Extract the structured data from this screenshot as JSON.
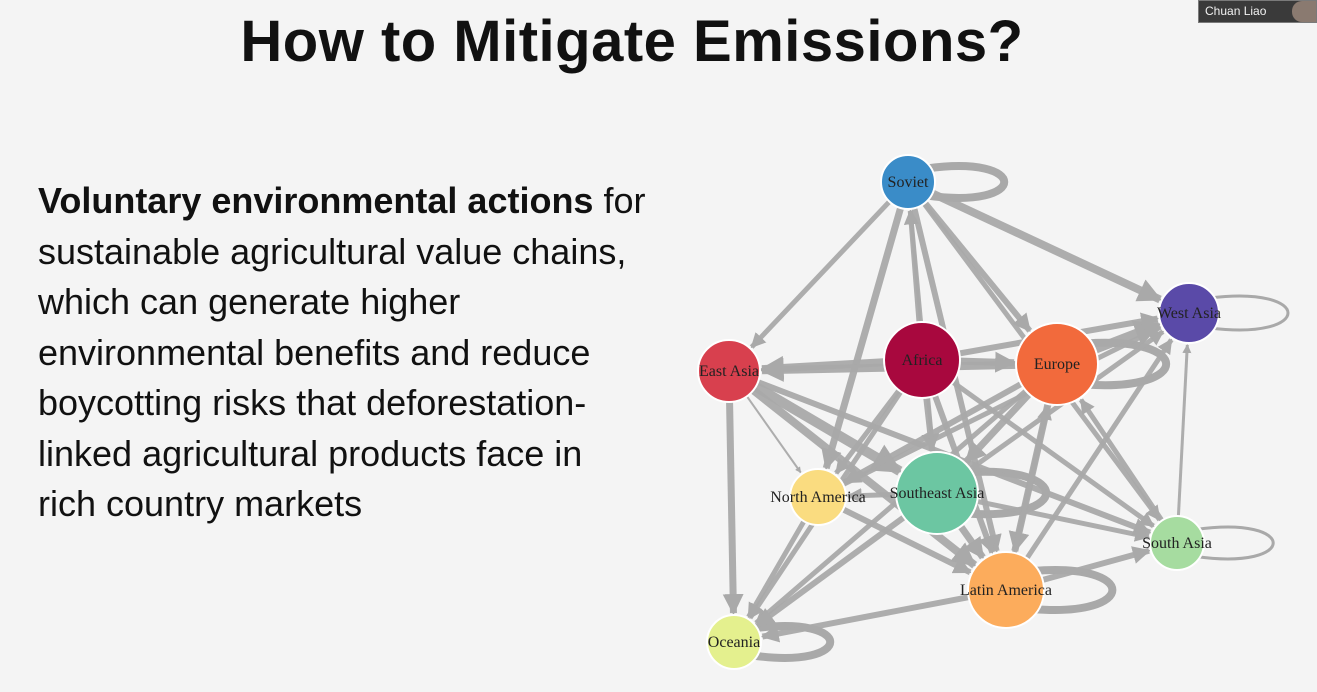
{
  "slide": {
    "title": "How to Mitigate Emissions?",
    "body_bold": "Voluntary environmental actions",
    "body_rest": " for sustainable agricultural value chains, which can generate higher environmental benefits and reduce boycotting risks that deforestation-linked agricultural products face in rich country markets"
  },
  "video": {
    "participant_name": "Chuan Liao"
  },
  "network": {
    "nodes": [
      {
        "id": "soviet",
        "label": "Soviet",
        "color": "#3a8cc8"
      },
      {
        "id": "west_asia",
        "label": "West Asia",
        "color": "#5a4aa8"
      },
      {
        "id": "africa",
        "label": "Africa",
        "color": "#a8083e"
      },
      {
        "id": "europe",
        "label": "Europe",
        "color": "#f26a3c"
      },
      {
        "id": "east_asia",
        "label": "East Asia",
        "color": "#d8404e"
      },
      {
        "id": "north_america",
        "label": "North America",
        "color": "#fadc80"
      },
      {
        "id": "southeast_asia",
        "label": "Southeast Asia",
        "color": "#6cc6a2"
      },
      {
        "id": "south_asia",
        "label": "South Asia",
        "color": "#a6dca0"
      },
      {
        "id": "latin_america",
        "label": "Latin America",
        "color": "#fcac5c"
      },
      {
        "id": "oceania",
        "label": "Oceania",
        "color": "#e4f08e"
      }
    ],
    "edges": [
      {
        "from": "soviet",
        "to": "west_asia",
        "weight": 8
      },
      {
        "from": "soviet",
        "to": "europe",
        "weight": 6
      },
      {
        "from": "soviet",
        "to": "east_asia",
        "weight": 5
      },
      {
        "from": "soviet",
        "to": "latin_america",
        "weight": 6
      },
      {
        "from": "soviet",
        "to": "north_america",
        "weight": 7
      },
      {
        "from": "soviet",
        "to": "south_asia",
        "weight": 5
      },
      {
        "from": "africa",
        "to": "soviet",
        "weight": 5
      },
      {
        "from": "southeast_asia",
        "to": "soviet",
        "weight": 4
      },
      {
        "from": "africa",
        "to": "east_asia",
        "weight": 8
      },
      {
        "from": "europe",
        "to": "east_asia",
        "weight": 8
      },
      {
        "from": "africa",
        "to": "europe",
        "weight": 7
      },
      {
        "from": "europe",
        "to": "west_asia",
        "weight": 9
      },
      {
        "from": "africa",
        "to": "west_asia",
        "weight": 6
      },
      {
        "from": "southeast_asia",
        "to": "west_asia",
        "weight": 5
      },
      {
        "from": "latin_america",
        "to": "west_asia",
        "weight": 5
      },
      {
        "from": "south_asia",
        "to": "west_asia",
        "weight": 3
      },
      {
        "from": "north_america",
        "to": "west_asia",
        "weight": 5
      },
      {
        "from": "east_asia",
        "to": "southeast_asia",
        "weight": 10
      },
      {
        "from": "east_asia",
        "to": "latin_america",
        "weight": 8
      },
      {
        "from": "east_asia",
        "to": "south_asia",
        "weight": 6
      },
      {
        "from": "east_asia",
        "to": "north_america",
        "weight": 2
      },
      {
        "from": "east_asia",
        "to": "oceania",
        "weight": 7
      },
      {
        "from": "africa",
        "to": "southeast_asia",
        "weight": 6
      },
      {
        "from": "africa",
        "to": "latin_america",
        "weight": 6
      },
      {
        "from": "africa",
        "to": "north_america",
        "weight": 5
      },
      {
        "from": "africa",
        "to": "oceania",
        "weight": 5
      },
      {
        "from": "africa",
        "to": "south_asia",
        "weight": 5
      },
      {
        "from": "europe",
        "to": "southeast_asia",
        "weight": 7
      },
      {
        "from": "europe",
        "to": "latin_america",
        "weight": 7
      },
      {
        "from": "europe",
        "to": "north_america",
        "weight": 6
      },
      {
        "from": "europe",
        "to": "oceania",
        "weight": 5
      },
      {
        "from": "southeast_asia",
        "to": "latin_america",
        "weight": 7
      },
      {
        "from": "southeast_asia",
        "to": "south_asia",
        "weight": 5
      },
      {
        "from": "southeast_asia",
        "to": "oceania",
        "weight": 6
      },
      {
        "from": "southeast_asia",
        "to": "north_america",
        "weight": 5
      },
      {
        "from": "latin_america",
        "to": "oceania",
        "weight": 6
      },
      {
        "from": "latin_america",
        "to": "south_asia",
        "weight": 6
      },
      {
        "from": "north_america",
        "to": "latin_america",
        "weight": 6
      },
      {
        "from": "north_america",
        "to": "oceania",
        "weight": 5
      },
      {
        "from": "south_asia",
        "to": "europe",
        "weight": 5
      },
      {
        "from": "latin_america",
        "to": "europe",
        "weight": 5
      }
    ],
    "self_loops": [
      "soviet",
      "west_asia",
      "europe",
      "southeast_asia",
      "south_asia",
      "latin_america",
      "oceania"
    ]
  }
}
